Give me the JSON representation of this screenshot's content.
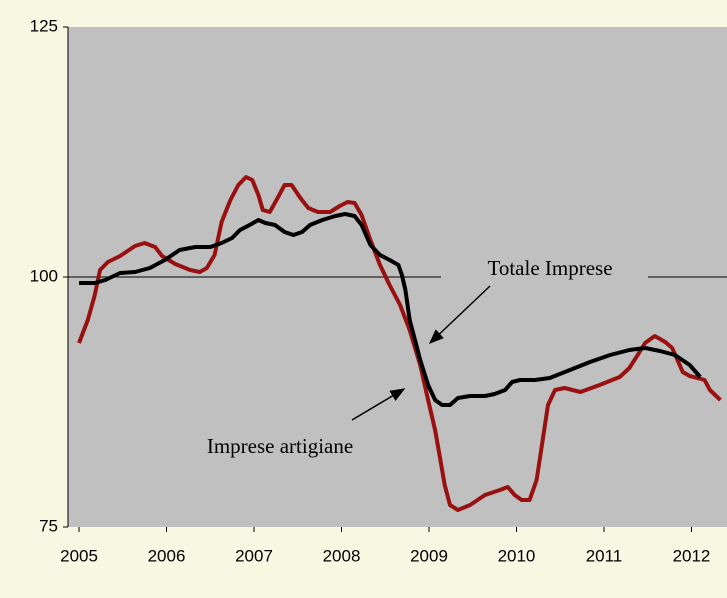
{
  "chart_data": {
    "type": "line",
    "xlim": [
      2004.874,
      2012.406
    ],
    "ylim": [
      75,
      125
    ],
    "xticks": [
      2005,
      2006,
      2007,
      2008,
      2009,
      2010,
      2011,
      2012
    ],
    "yticks": [
      75,
      100,
      125
    ],
    "grid": true,
    "annotations": [
      "Totale Imprese",
      "Imprese artigiane"
    ],
    "series": [
      {
        "name": "Imprese artigiane",
        "color": "#981010",
        "x": [
          2005.0,
          2005.1,
          2005.18,
          2005.24,
          2005.33,
          2005.47,
          2005.64,
          2005.75,
          2005.87,
          2005.95,
          2006.1,
          2006.27,
          2006.38,
          2006.46,
          2006.55,
          2006.63,
          2006.73,
          2006.82,
          2006.91,
          2006.98,
          2007.05,
          2007.1,
          2007.18,
          2007.27,
          2007.35,
          2007.43,
          2007.53,
          2007.62,
          2007.73,
          2007.87,
          2007.98,
          2008.07,
          2008.15,
          2008.23,
          2008.33,
          2008.44,
          2008.55,
          2008.67,
          2008.78,
          2008.9,
          2008.99,
          2009.07,
          2009.13,
          2009.18,
          2009.24,
          2009.33,
          2009.47,
          2009.64,
          2009.81,
          2009.9,
          2009.98,
          2010.06,
          2010.15,
          2010.23,
          2010.3,
          2010.36,
          2010.44,
          2010.55,
          2010.73,
          2010.95,
          2011.18,
          2011.29,
          2011.37,
          2011.47,
          2011.58,
          2011.7,
          2011.78,
          2011.83,
          2011.9,
          2011.98,
          2012.07,
          2012.15,
          2012.21,
          2012.33
        ],
        "values": [
          93.4,
          95.7,
          98.2,
          100.7,
          101.5,
          102.1,
          103.1,
          103.4,
          103.0,
          102.1,
          101.3,
          100.7,
          100.5,
          100.9,
          102.2,
          105.5,
          107.7,
          109.2,
          110.0,
          109.7,
          108.2,
          106.7,
          106.5,
          107.9,
          109.2,
          109.2,
          107.9,
          106.9,
          106.5,
          106.5,
          107.1,
          107.5,
          107.4,
          106.2,
          103.7,
          101.2,
          99.2,
          97.2,
          94.7,
          91.2,
          87.7,
          84.7,
          81.7,
          79.2,
          77.2,
          76.7,
          77.2,
          78.2,
          78.7,
          79.0,
          78.2,
          77.7,
          77.7,
          79.7,
          83.7,
          87.2,
          88.7,
          88.9,
          88.5,
          89.2,
          90.0,
          90.9,
          92.0,
          93.4,
          94.1,
          93.5,
          92.9,
          91.9,
          90.5,
          90.1,
          89.9,
          89.7,
          88.7,
          87.7
        ]
      },
      {
        "name": "Totale Imprese",
        "color": "#000000",
        "x": [
          2005.0,
          2005.18,
          2005.3,
          2005.47,
          2005.64,
          2005.81,
          2005.98,
          2006.15,
          2006.33,
          2006.5,
          2006.63,
          2006.75,
          2006.84,
          2006.95,
          2007.05,
          2007.13,
          2007.24,
          2007.35,
          2007.45,
          2007.55,
          2007.64,
          2007.78,
          2007.93,
          2008.04,
          2008.15,
          2008.23,
          2008.33,
          2008.44,
          2008.55,
          2008.65,
          2008.69,
          2008.73,
          2008.78,
          2008.84,
          2008.9,
          2008.99,
          2009.07,
          2009.15,
          2009.24,
          2009.33,
          2009.47,
          2009.64,
          2009.75,
          2009.87,
          2009.95,
          2010.04,
          2010.21,
          2010.38,
          2010.61,
          2010.84,
          2011.07,
          2011.29,
          2011.47,
          2011.64,
          2011.81,
          2011.98,
          2012.1
        ],
        "values": [
          99.4,
          99.4,
          99.7,
          100.4,
          100.5,
          100.9,
          101.7,
          102.7,
          103.0,
          103.0,
          103.4,
          103.9,
          104.7,
          105.2,
          105.7,
          105.4,
          105.2,
          104.5,
          104.2,
          104.5,
          105.2,
          105.7,
          106.1,
          106.3,
          106.1,
          105.2,
          103.2,
          102.2,
          101.7,
          101.2,
          100.2,
          98.7,
          95.7,
          93.7,
          91.7,
          89.2,
          87.7,
          87.2,
          87.2,
          87.9,
          88.1,
          88.1,
          88.3,
          88.7,
          89.5,
          89.7,
          89.7,
          89.9,
          90.7,
          91.5,
          92.2,
          92.7,
          92.9,
          92.6,
          92.2,
          91.2,
          90.0
        ]
      }
    ]
  }
}
